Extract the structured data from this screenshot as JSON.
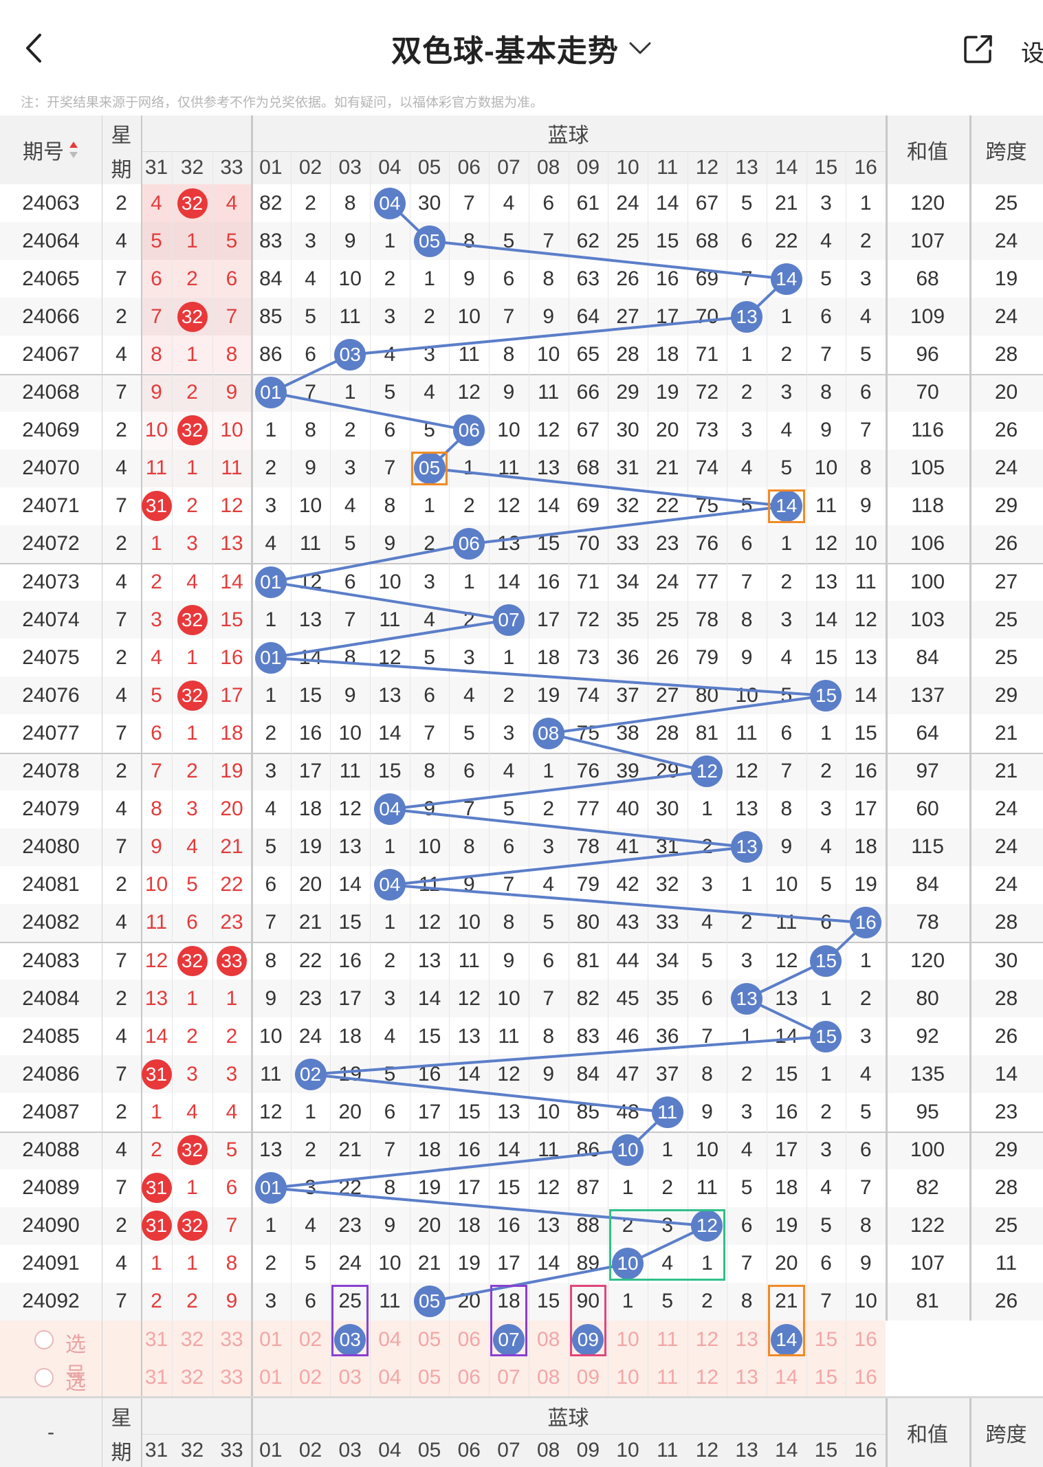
{
  "nav": {
    "title": "双色球-基本走势",
    "setting_label": "设",
    "notice": "注：开奖结果来源于网络，仅供参考不作为兑奖依据。如有疑问，以福体彩官方数据为准。"
  },
  "header": {
    "period_label": "期号",
    "week_label_1": "星",
    "week_label_2": "期",
    "blue_label": "蓝球",
    "sum_label": "和值",
    "span_label": "跨度",
    "tail_cols": [
      "31",
      "32",
      "33"
    ],
    "blue_cols": [
      "01",
      "02",
      "03",
      "04",
      "05",
      "06",
      "07",
      "08",
      "09",
      "10",
      "11",
      "12",
      "13",
      "14",
      "15",
      "16"
    ]
  },
  "footer_header": {
    "period_label": "-",
    "week_label_1": "星",
    "week_label_2": "期",
    "blue_label": "蓝球",
    "sum_label": "和值",
    "span_label": "跨度",
    "tail_cols": [
      "31",
      "32",
      "33"
    ],
    "blue_cols": [
      "01",
      "02",
      "03",
      "04",
      "05",
      "06",
      "07",
      "08",
      "09",
      "10",
      "11",
      "12",
      "13",
      "14",
      "15",
      "16"
    ]
  },
  "select_rows": [
    {
      "label": "选号",
      "tail": [
        "31",
        "32",
        "33"
      ],
      "blue": [
        "01",
        "02",
        "03",
        "04",
        "05",
        "06",
        "07",
        "08",
        "09",
        "10",
        "11",
        "12",
        "13",
        "14",
        "15",
        "16"
      ]
    },
    {
      "label": "选号",
      "tail": [
        "31",
        "32",
        "33"
      ],
      "blue": [
        "01",
        "02",
        "03",
        "04",
        "05",
        "06",
        "07",
        "08",
        "09",
        "10",
        "11",
        "12",
        "13",
        "14",
        "15",
        "16"
      ]
    }
  ],
  "selected_blue": [
    {
      "row": 0,
      "col": 3,
      "label": "03"
    },
    {
      "row": 0,
      "col": 7,
      "label": "07"
    },
    {
      "row": 0,
      "col": 9,
      "label": "09"
    },
    {
      "row": 0,
      "col": 14,
      "label": "14"
    }
  ],
  "rows": [
    {
      "period": "24063",
      "week": "2",
      "tail": [
        "4",
        "32",
        "4"
      ],
      "ball_col": 4,
      "blue": [
        "82",
        "2",
        "8",
        "04",
        "30",
        "7",
        "4",
        "6",
        "61",
        "24",
        "14",
        "67",
        "5",
        "21",
        "3",
        "1"
      ],
      "sum": "120",
      "span": "25"
    },
    {
      "period": "24064",
      "week": "4",
      "tail": [
        "5",
        "1",
        "5"
      ],
      "ball_col": 5,
      "blue": [
        "83",
        "3",
        "9",
        "1",
        "05",
        "8",
        "5",
        "7",
        "62",
        "25",
        "15",
        "68",
        "6",
        "22",
        "4",
        "2"
      ],
      "sum": "107",
      "span": "24"
    },
    {
      "period": "24065",
      "week": "7",
      "tail": [
        "6",
        "2",
        "6"
      ],
      "ball_col": 14,
      "blue": [
        "84",
        "4",
        "10",
        "2",
        "1",
        "9",
        "6",
        "8",
        "63",
        "26",
        "16",
        "69",
        "7",
        "14",
        "5",
        "3"
      ],
      "sum": "68",
      "span": "19"
    },
    {
      "period": "24066",
      "week": "2",
      "tail": [
        "7",
        "32",
        "7"
      ],
      "ball_col": 13,
      "blue": [
        "85",
        "5",
        "11",
        "3",
        "2",
        "10",
        "7",
        "9",
        "64",
        "27",
        "17",
        "70",
        "13",
        "1",
        "6",
        "4"
      ],
      "sum": "109",
      "span": "24"
    },
    {
      "period": "24067",
      "week": "4",
      "tail": [
        "8",
        "1",
        "8"
      ],
      "ball_col": 3,
      "blue": [
        "86",
        "6",
        "03",
        "4",
        "3",
        "11",
        "8",
        "10",
        "65",
        "28",
        "18",
        "71",
        "1",
        "2",
        "7",
        "5"
      ],
      "sum": "96",
      "span": "28"
    },
    {
      "period": "24068",
      "week": "7",
      "tail": [
        "9",
        "2",
        "9"
      ],
      "ball_col": 1,
      "blue": [
        "01",
        "7",
        "1",
        "5",
        "4",
        "12",
        "9",
        "11",
        "66",
        "29",
        "19",
        "72",
        "2",
        "3",
        "8",
        "6"
      ],
      "sum": "70",
      "span": "20"
    },
    {
      "period": "24069",
      "week": "2",
      "tail": [
        "10",
        "32",
        "10"
      ],
      "ball_col": 6,
      "blue": [
        "1",
        "8",
        "2",
        "6",
        "5",
        "06",
        "10",
        "12",
        "67",
        "30",
        "20",
        "73",
        "3",
        "4",
        "9",
        "7"
      ],
      "sum": "116",
      "span": "26"
    },
    {
      "period": "24070",
      "week": "4",
      "tail": [
        "11",
        "1",
        "11"
      ],
      "ball_col": 5,
      "blue": [
        "2",
        "9",
        "3",
        "7",
        "05",
        "1",
        "11",
        "13",
        "68",
        "31",
        "21",
        "74",
        "4",
        "5",
        "10",
        "8"
      ],
      "sum": "105",
      "span": "24"
    },
    {
      "period": "24071",
      "week": "7",
      "tail": [
        "31",
        "2",
        "12"
      ],
      "ball_col": 14,
      "blue": [
        "3",
        "10",
        "4",
        "8",
        "1",
        "2",
        "12",
        "14",
        "69",
        "32",
        "22",
        "75",
        "5",
        "14",
        "11",
        "9"
      ],
      "sum": "118",
      "span": "29"
    },
    {
      "period": "24072",
      "week": "2",
      "tail": [
        "1",
        "3",
        "13"
      ],
      "ball_col": 6,
      "blue": [
        "4",
        "11",
        "5",
        "9",
        "2",
        "06",
        "13",
        "15",
        "70",
        "33",
        "23",
        "76",
        "6",
        "1",
        "12",
        "10"
      ],
      "sum": "106",
      "span": "26"
    },
    {
      "period": "24073",
      "week": "4",
      "tail": [
        "2",
        "4",
        "14"
      ],
      "ball_col": 1,
      "blue": [
        "01",
        "12",
        "6",
        "10",
        "3",
        "1",
        "14",
        "16",
        "71",
        "34",
        "24",
        "77",
        "7",
        "2",
        "13",
        "11"
      ],
      "sum": "100",
      "span": "27"
    },
    {
      "period": "24074",
      "week": "7",
      "tail": [
        "3",
        "32",
        "15"
      ],
      "ball_col": 7,
      "blue": [
        "1",
        "13",
        "7",
        "11",
        "4",
        "2",
        "07",
        "17",
        "72",
        "35",
        "25",
        "78",
        "8",
        "3",
        "14",
        "12"
      ],
      "sum": "103",
      "span": "25"
    },
    {
      "period": "24075",
      "week": "2",
      "tail": [
        "4",
        "1",
        "16"
      ],
      "ball_col": 1,
      "blue": [
        "01",
        "14",
        "8",
        "12",
        "5",
        "3",
        "1",
        "18",
        "73",
        "36",
        "26",
        "79",
        "9",
        "4",
        "15",
        "13"
      ],
      "sum": "84",
      "span": "25"
    },
    {
      "period": "24076",
      "week": "4",
      "tail": [
        "5",
        "32",
        "17"
      ],
      "ball_col": 15,
      "blue": [
        "1",
        "15",
        "9",
        "13",
        "6",
        "4",
        "2",
        "19",
        "74",
        "37",
        "27",
        "80",
        "10",
        "5",
        "15",
        "14"
      ],
      "sum": "137",
      "span": "29"
    },
    {
      "period": "24077",
      "week": "7",
      "tail": [
        "6",
        "1",
        "18"
      ],
      "ball_col": 8,
      "blue": [
        "2",
        "16",
        "10",
        "14",
        "7",
        "5",
        "3",
        "08",
        "75",
        "38",
        "28",
        "81",
        "11",
        "6",
        "1",
        "15"
      ],
      "sum": "64",
      "span": "21"
    },
    {
      "period": "24078",
      "week": "2",
      "tail": [
        "7",
        "2",
        "19"
      ],
      "ball_col": 12,
      "blue": [
        "3",
        "17",
        "11",
        "15",
        "8",
        "6",
        "4",
        "1",
        "76",
        "39",
        "29",
        "12",
        "12",
        "7",
        "2",
        "16"
      ],
      "sum": "97",
      "span": "21"
    },
    {
      "period": "24079",
      "week": "4",
      "tail": [
        "8",
        "3",
        "20"
      ],
      "ball_col": 4,
      "blue": [
        "4",
        "18",
        "12",
        "04",
        "9",
        "7",
        "5",
        "2",
        "77",
        "40",
        "30",
        "1",
        "13",
        "8",
        "3",
        "17"
      ],
      "sum": "60",
      "span": "24"
    },
    {
      "period": "24080",
      "week": "7",
      "tail": [
        "9",
        "4",
        "21"
      ],
      "ball_col": 13,
      "blue": [
        "5",
        "19",
        "13",
        "1",
        "10",
        "8",
        "6",
        "3",
        "78",
        "41",
        "31",
        "2",
        "13",
        "9",
        "4",
        "18"
      ],
      "sum": "115",
      "span": "24"
    },
    {
      "period": "24081",
      "week": "2",
      "tail": [
        "10",
        "5",
        "22"
      ],
      "ball_col": 4,
      "blue": [
        "6",
        "20",
        "14",
        "04",
        "11",
        "9",
        "7",
        "4",
        "79",
        "42",
        "32",
        "3",
        "1",
        "10",
        "5",
        "19"
      ],
      "sum": "84",
      "span": "24"
    },
    {
      "period": "24082",
      "week": "4",
      "tail": [
        "11",
        "6",
        "23"
      ],
      "ball_col": 16,
      "blue": [
        "7",
        "21",
        "15",
        "1",
        "12",
        "10",
        "8",
        "5",
        "80",
        "43",
        "33",
        "4",
        "2",
        "11",
        "6",
        "16"
      ],
      "sum": "78",
      "span": "28"
    },
    {
      "period": "24083",
      "week": "7",
      "tail": [
        "12",
        "32",
        "33"
      ],
      "ball_col": 15,
      "blue": [
        "8",
        "22",
        "16",
        "2",
        "13",
        "11",
        "9",
        "6",
        "81",
        "44",
        "34",
        "5",
        "3",
        "12",
        "15",
        "1"
      ],
      "sum": "120",
      "span": "30"
    },
    {
      "period": "24084",
      "week": "2",
      "tail": [
        "13",
        "1",
        "1"
      ],
      "ball_col": 13,
      "blue": [
        "9",
        "23",
        "17",
        "3",
        "14",
        "12",
        "10",
        "7",
        "82",
        "45",
        "35",
        "6",
        "13",
        "13",
        "1",
        "2"
      ],
      "sum": "80",
      "span": "28"
    },
    {
      "period": "24085",
      "week": "4",
      "tail": [
        "14",
        "2",
        "2"
      ],
      "ball_col": 15,
      "blue": [
        "10",
        "24",
        "18",
        "4",
        "15",
        "13",
        "11",
        "8",
        "83",
        "46",
        "36",
        "7",
        "1",
        "14",
        "15",
        "3"
      ],
      "sum": "92",
      "span": "26"
    },
    {
      "period": "24086",
      "week": "7",
      "tail": [
        "31",
        "3",
        "3"
      ],
      "ball_col": 2,
      "blue": [
        "11",
        "02",
        "19",
        "5",
        "16",
        "14",
        "12",
        "9",
        "84",
        "47",
        "37",
        "8",
        "2",
        "15",
        "1",
        "4"
      ],
      "sum": "135",
      "span": "14"
    },
    {
      "period": "24087",
      "week": "2",
      "tail": [
        "1",
        "4",
        "4"
      ],
      "ball_col": 11,
      "blue": [
        "12",
        "1",
        "20",
        "6",
        "17",
        "15",
        "13",
        "10",
        "85",
        "48",
        "11",
        "9",
        "3",
        "16",
        "2",
        "5"
      ],
      "sum": "95",
      "span": "23"
    },
    {
      "period": "24088",
      "week": "4",
      "tail": [
        "2",
        "32",
        "5"
      ],
      "ball_col": 10,
      "blue": [
        "13",
        "2",
        "21",
        "7",
        "18",
        "16",
        "14",
        "11",
        "86",
        "10",
        "1",
        "10",
        "4",
        "17",
        "3",
        "6"
      ],
      "sum": "100",
      "span": "29"
    },
    {
      "period": "24089",
      "week": "7",
      "tail": [
        "31",
        "1",
        "6"
      ],
      "ball_col": 1,
      "blue": [
        "01",
        "3",
        "22",
        "8",
        "19",
        "17",
        "15",
        "12",
        "87",
        "1",
        "2",
        "11",
        "5",
        "18",
        "4",
        "7"
      ],
      "sum": "82",
      "span": "28"
    },
    {
      "period": "24090",
      "week": "2",
      "tail": [
        "31",
        "32",
        "7"
      ],
      "ball_col": 12,
      "blue": [
        "1",
        "4",
        "23",
        "9",
        "20",
        "18",
        "16",
        "13",
        "88",
        "2",
        "3",
        "12",
        "6",
        "19",
        "5",
        "8"
      ],
      "sum": "122",
      "span": "25"
    },
    {
      "period": "24091",
      "week": "4",
      "tail": [
        "1",
        "1",
        "8"
      ],
      "ball_col": 10,
      "blue": [
        "2",
        "5",
        "24",
        "10",
        "21",
        "19",
        "17",
        "14",
        "89",
        "10",
        "4",
        "1",
        "7",
        "20",
        "6",
        "9"
      ],
      "sum": "107",
      "span": "11"
    },
    {
      "period": "24092",
      "week": "7",
      "tail": [
        "2",
        "2",
        "9"
      ],
      "ball_col": 5,
      "blue": [
        "3",
        "6",
        "25",
        "11",
        "05",
        "20",
        "18",
        "15",
        "90",
        "1",
        "5",
        "2",
        "8",
        "21",
        "7",
        "10"
      ],
      "sum": "81",
      "span": "26"
    }
  ],
  "red_balls": [
    {
      "row": 0,
      "col": 1
    },
    {
      "row": 3,
      "col": 1
    },
    {
      "row": 6,
      "col": 1
    },
    {
      "row": 8,
      "col": 0
    },
    {
      "row": 11,
      "col": 1
    },
    {
      "row": 13,
      "col": 1
    },
    {
      "row": 20,
      "col": 1
    },
    {
      "row": 20,
      "col": 2
    },
    {
      "row": 23,
      "col": 0
    },
    {
      "row": 25,
      "col": 1
    },
    {
      "row": 26,
      "col": 0
    },
    {
      "row": 27,
      "col": 0
    },
    {
      "row": 27,
      "col": 1
    }
  ],
  "highlights": [
    {
      "color": "#f08a24",
      "row_start": 7,
      "row_end": 7,
      "col_start": 5,
      "col_end": 5
    },
    {
      "color": "#f08a24",
      "row_start": 8,
      "row_end": 8,
      "col_start": 14,
      "col_end": 14
    },
    {
      "color": "#2fc08a",
      "row_start": 27,
      "row_end": 28,
      "col_start": 10,
      "col_end": 12
    },
    {
      "color": "#8a3fd1",
      "row_start": 29,
      "row_end": 30,
      "col_start": 3,
      "col_end": 3
    },
    {
      "color": "#8a3fd1",
      "row_start": 29,
      "row_end": 30,
      "col_start": 7,
      "col_end": 7
    },
    {
      "color": "#e0457b",
      "row_start": 29,
      "row_end": 30,
      "col_start": 9,
      "col_end": 9
    },
    {
      "color": "#f08a24",
      "row_start": 29,
      "row_end": 30,
      "col_start": 14,
      "col_end": 14
    }
  ],
  "colors": {
    "blue_ball": "#5b7ec9",
    "red_ball": "#e8383a",
    "red_text": "#e33b3b",
    "select_bg": "#fdeee8",
    "header_bg": "#f2f2f2"
  }
}
